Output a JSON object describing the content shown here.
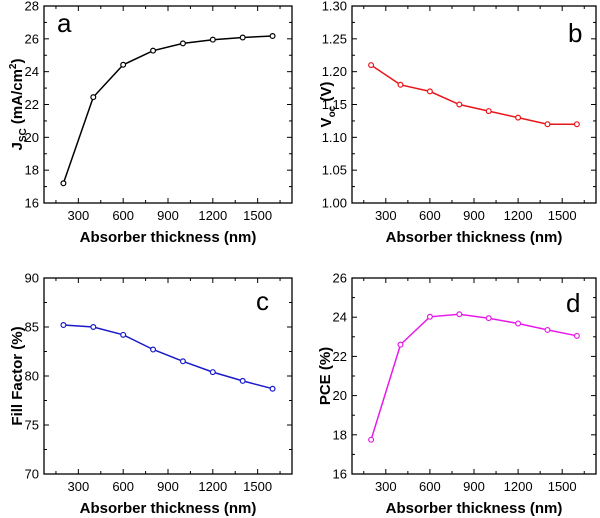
{
  "figure": {
    "panels": [
      "a",
      "b",
      "c",
      "d"
    ]
  },
  "chart_data": [
    {
      "type": "line",
      "panel_label": "a",
      "title": "",
      "xlabel": "Absorber thickness (nm)",
      "ylabel_main": "J",
      "ylabel_sub": "SC",
      "ylabel_rest": " (mA/cm",
      "ylabel_sup": "2",
      "ylabel_end": ")",
      "xlim": [
        70,
        1730
      ],
      "ylim": [
        16,
        28
      ],
      "xticks": [
        300,
        600,
        900,
        1200,
        1500
      ],
      "yticks": [
        16,
        18,
        20,
        22,
        24,
        26,
        28
      ],
      "ytick_labels": [
        "16",
        "18",
        "20",
        "22",
        "24",
        "26",
        "28"
      ],
      "series": [
        {
          "name": "Jsc",
          "color": "#000000",
          "x": [
            200,
            400,
            600,
            800,
            1000,
            1200,
            1400,
            1600
          ],
          "y": [
            17.2,
            22.45,
            24.42,
            25.28,
            25.72,
            25.95,
            26.08,
            26.17
          ]
        }
      ]
    },
    {
      "type": "line",
      "panel_label": "b",
      "title": "",
      "xlabel": "Absorber thickness (nm)",
      "ylabel_main": "V",
      "ylabel_sub": "oc",
      "ylabel_rest": " (V)",
      "ylabel_sup": "",
      "ylabel_end": "",
      "xlim": [
        70,
        1730
      ],
      "ylim": [
        1.0,
        1.3
      ],
      "xticks": [
        300,
        600,
        900,
        1200,
        1500
      ],
      "yticks": [
        1.0,
        1.05,
        1.1,
        1.15,
        1.2,
        1.25,
        1.3
      ],
      "ytick_labels": [
        "1.00",
        "1.05",
        "1.10",
        "1.15",
        "1.20",
        "1.25",
        "1.30"
      ],
      "series": [
        {
          "name": "Voc",
          "color": "#e8161b",
          "x": [
            200,
            400,
            600,
            800,
            1000,
            1200,
            1400,
            1600
          ],
          "y": [
            1.21,
            1.18,
            1.17,
            1.15,
            1.14,
            1.13,
            1.12,
            1.12
          ]
        }
      ]
    },
    {
      "type": "line",
      "panel_label": "c",
      "title": "",
      "xlabel": "Absorber thickness (nm)",
      "ylabel_main": "Fill Factor (%)",
      "ylabel_sub": "",
      "ylabel_rest": "",
      "ylabel_sup": "",
      "ylabel_end": "",
      "xlim": [
        70,
        1730
      ],
      "ylim": [
        70,
        90
      ],
      "xticks": [
        300,
        600,
        900,
        1200,
        1500
      ],
      "yticks": [
        70,
        75,
        80,
        85,
        90
      ],
      "ytick_labels": [
        "70",
        "75",
        "80",
        "85",
        "90"
      ],
      "series": [
        {
          "name": "FF",
          "color": "#1a1ac8",
          "x": [
            200,
            400,
            600,
            800,
            1000,
            1200,
            1400,
            1600
          ],
          "y": [
            85.2,
            85.0,
            84.2,
            82.7,
            81.5,
            80.4,
            79.5,
            78.7
          ]
        }
      ]
    },
    {
      "type": "line",
      "panel_label": "d",
      "title": "",
      "xlabel": "Absorber thickness (nm)",
      "ylabel_main": "PCE (%)",
      "ylabel_sub": "",
      "ylabel_rest": "",
      "ylabel_sup": "",
      "ylabel_end": "",
      "xlim": [
        70,
        1730
      ],
      "ylim": [
        16,
        26
      ],
      "xticks": [
        300,
        600,
        900,
        1200,
        1500
      ],
      "yticks": [
        16,
        18,
        20,
        22,
        24,
        26
      ],
      "ytick_labels": [
        "16",
        "18",
        "20",
        "22",
        "24",
        "26"
      ],
      "series": [
        {
          "name": "PCE",
          "color": "#e81ae8",
          "x": [
            200,
            400,
            600,
            800,
            1000,
            1200,
            1400,
            1600
          ],
          "y": [
            17.75,
            22.6,
            24.02,
            24.15,
            23.95,
            23.68,
            23.35,
            23.05
          ]
        }
      ]
    }
  ]
}
